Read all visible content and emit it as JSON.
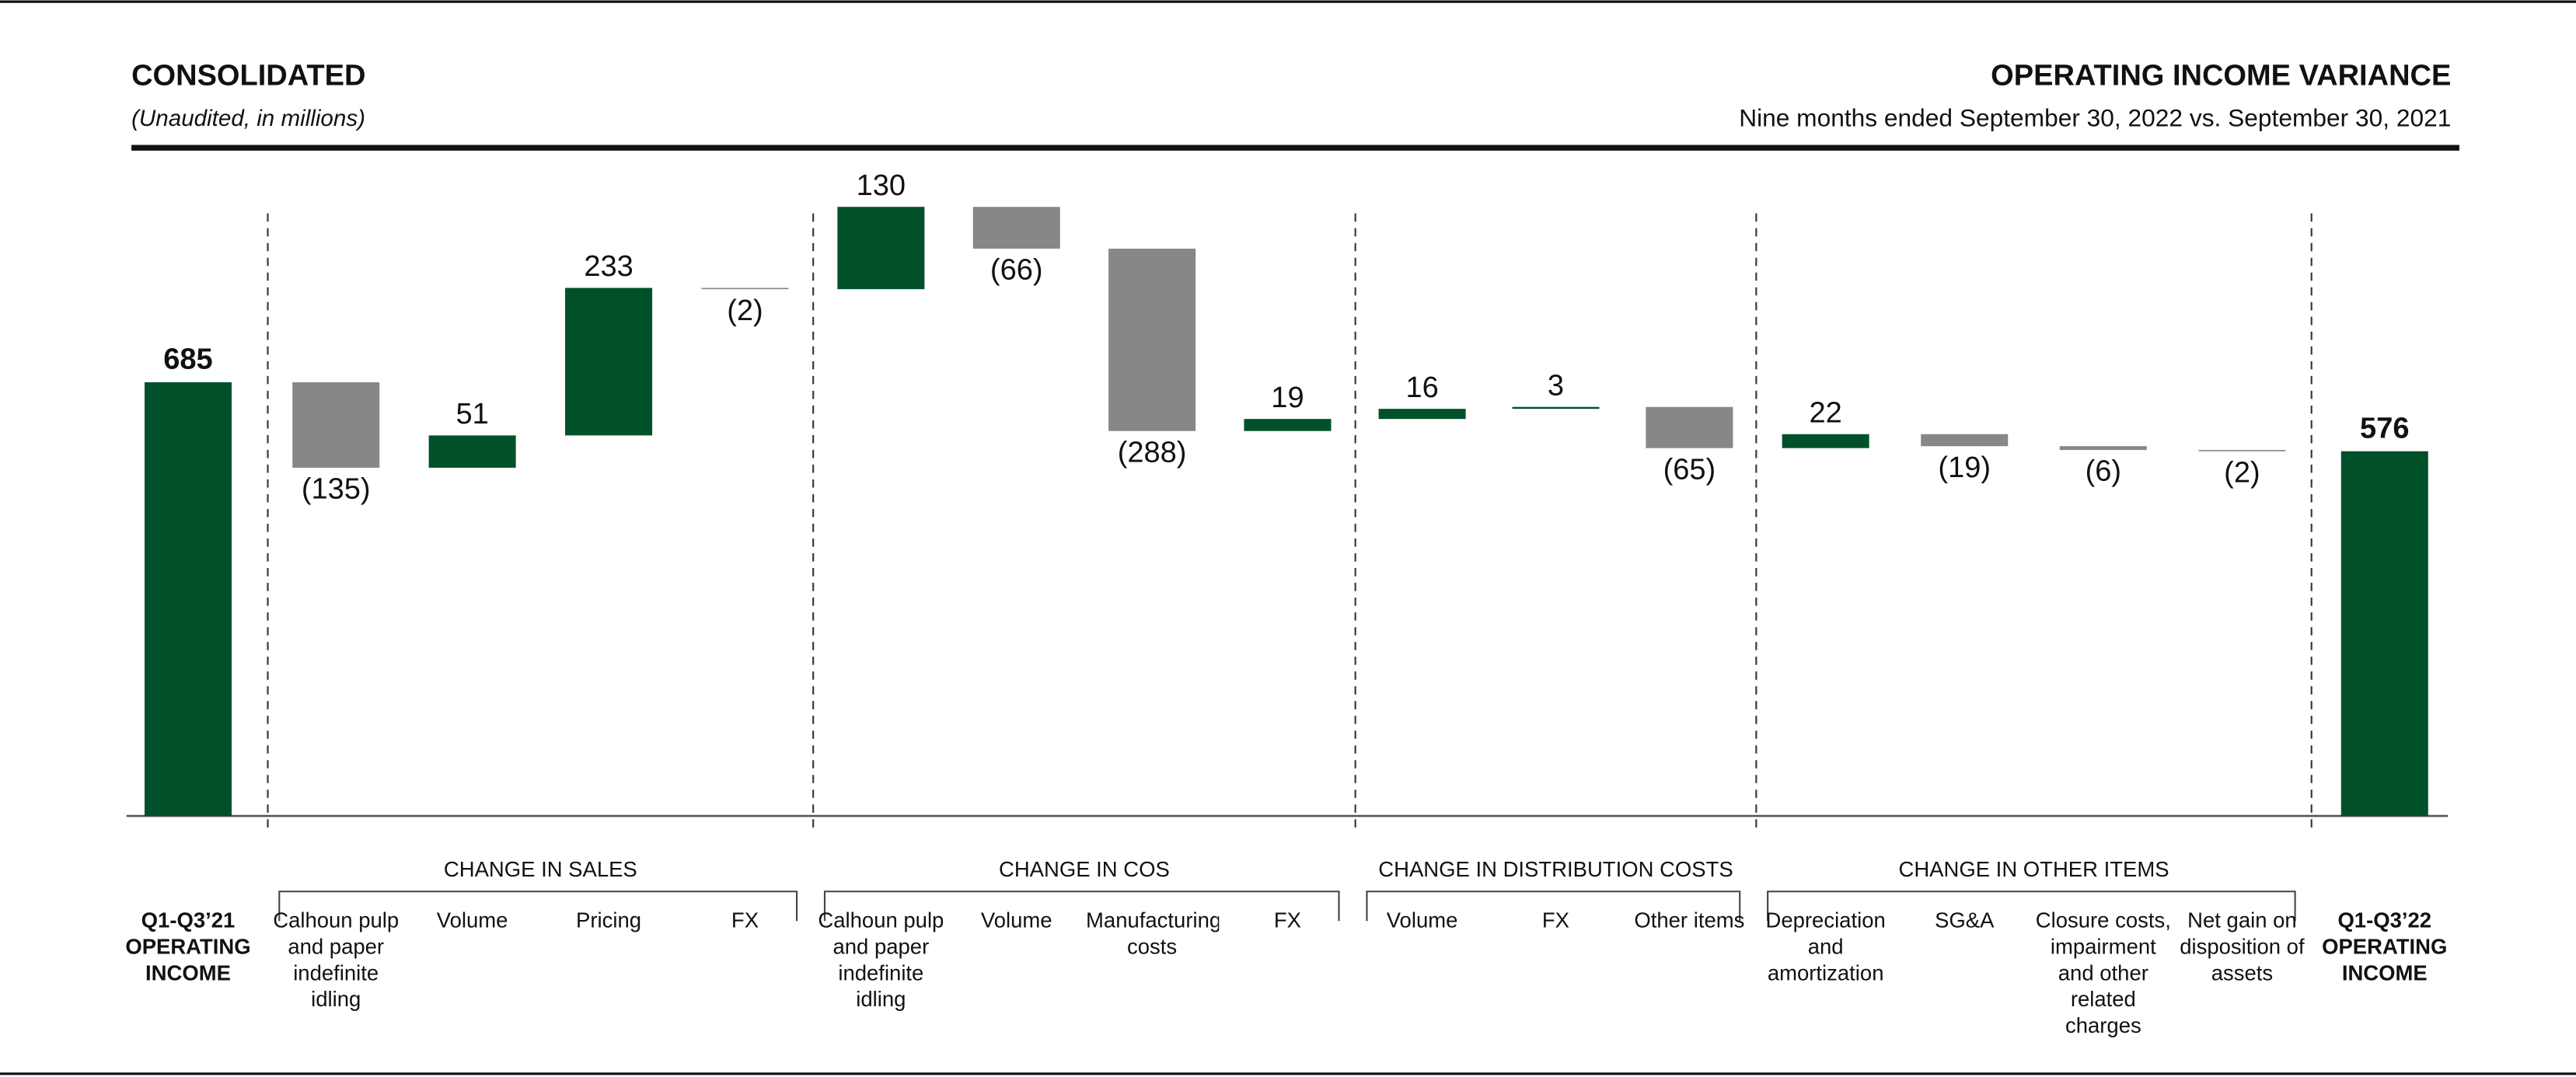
{
  "chart_data": {
    "type": "waterfall",
    "header": "CONSOLIDATED",
    "note": "(Unaudited, in millions)",
    "title": "OPERATING INCOME VARIANCE",
    "subtitle": "Nine months ended September 30, 2022 vs. September 30, 2021",
    "start": {
      "label": "Q1-Q3’21 OPERATING INCOME",
      "value": 685
    },
    "end": {
      "label": "Q1-Q3’22 OPERATING INCOME",
      "value": 576
    },
    "groups": [
      {
        "name": "CHANGE IN SALES",
        "categories": [
          "Calhoun pulp and paper indefinite idling",
          "Volume",
          "Pricing",
          "FX"
        ],
        "values": [
          -135,
          51,
          233,
          -2
        ],
        "value_labels": [
          "(135)",
          "51",
          "233",
          "(2)"
        ]
      },
      {
        "name": "CHANGE IN COS",
        "categories": [
          "Calhoun pulp and paper indefinite idling",
          "Volume",
          "Manufacturing costs",
          "FX"
        ],
        "values": [
          130,
          -66,
          -288,
          19
        ],
        "value_labels": [
          "130",
          "(66)",
          "(288)",
          "19"
        ]
      },
      {
        "name": "CHANGE IN DISTRIBUTION COSTS",
        "categories": [
          "Volume",
          "FX",
          "Other items"
        ],
        "values": [
          16,
          3,
          -65
        ],
        "value_labels": [
          "16",
          "3",
          "(65)"
        ]
      },
      {
        "name": "CHANGE IN OTHER ITEMS",
        "categories": [
          "Depreciation and amortization",
          "SG&A",
          "Closure costs, impairment and other related charges",
          "Net gain on disposition of assets"
        ],
        "values": [
          22,
          -19,
          -6,
          -2
        ],
        "value_labels": [
          "22",
          "(19)",
          "(6)",
          "(2)"
        ]
      }
    ],
    "total_color": "#00502a",
    "positive_color": "#00502a",
    "negative_color": "#878787",
    "ylim": [
      0,
      1000
    ]
  }
}
